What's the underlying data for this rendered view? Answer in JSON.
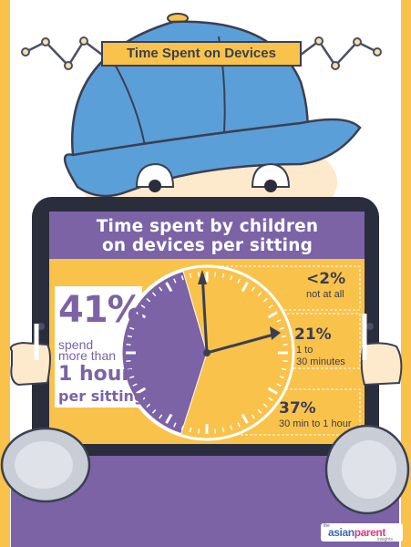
{
  "banner": {
    "title": "Time Spent on Devices"
  },
  "header": {
    "line1": "Time spent by children",
    "line2": "on devices per sitting"
  },
  "main_stat": {
    "percent": "41%",
    "line1": "spend",
    "line2": "more than",
    "line3": "1 hour",
    "line4": "per sitting"
  },
  "legend": [
    {
      "percent": "<2%",
      "label": "not at all"
    },
    {
      "percent": "21%",
      "label_line1": "1 to",
      "label_line2": "30 minutes"
    },
    {
      "percent": "37%",
      "label": "30 min to 1 hour"
    }
  ],
  "chart_data": {
    "type": "pie",
    "title": "Time spent by children on devices per sitting",
    "slices": [
      {
        "label": "not at all",
        "value": 2
      },
      {
        "label": "1 to 30 minutes",
        "value": 21
      },
      {
        "label": "30 min to 1 hour",
        "value": 37
      },
      {
        "label": "more than 1 hour",
        "value": 41
      }
    ]
  },
  "brand": {
    "the": "the",
    "part1": "asian",
    "part2": "parent",
    "insights": "insights"
  },
  "colors": {
    "yellow": "#f9c24b",
    "purple": "#7b63a6",
    "cap_blue": "#5b9fd8",
    "dark": "#2a2d3c",
    "shoe": "#c9cdd6"
  },
  "icons": [
    "cap-icon",
    "eyes-icon",
    "hands-icon",
    "shoes-icon",
    "clock-icon"
  ]
}
